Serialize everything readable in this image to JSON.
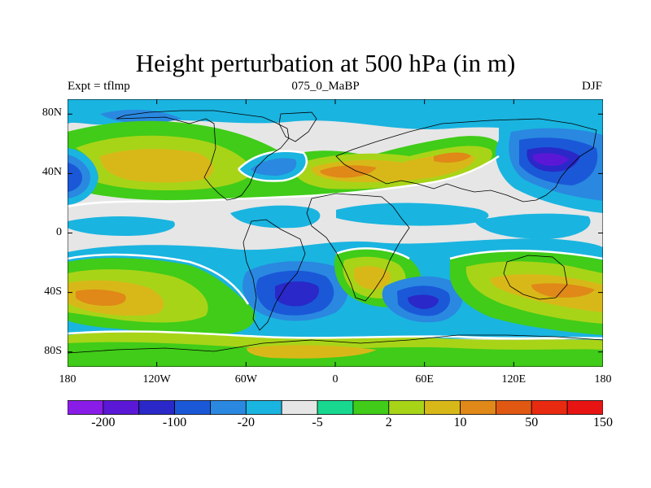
{
  "title": "Height perturbation at 500 hPa (in m)",
  "subtitle_left": "Expt = tflmp",
  "subtitle_center": "075_0_MaBP",
  "subtitle_right": "DJF",
  "map": {
    "projection": "cylindrical-equidistant",
    "lon_range": [
      -180,
      180
    ],
    "lat_range": [
      -90,
      90
    ],
    "lat_ticks": [
      {
        "value": 80,
        "label": "80N"
      },
      {
        "value": 40,
        "label": "40N"
      },
      {
        "value": 0,
        "label": "0"
      },
      {
        "value": -40,
        "label": "40S"
      },
      {
        "value": -80,
        "label": "80S"
      }
    ],
    "lon_ticks": [
      {
        "value": -180,
        "label": "180"
      },
      {
        "value": -120,
        "label": "120W"
      },
      {
        "value": -60,
        "label": "60W"
      },
      {
        "value": 0,
        "label": "0"
      },
      {
        "value": 60,
        "label": "60E"
      },
      {
        "value": 120,
        "label": "120E"
      },
      {
        "value": 180,
        "label": "180"
      }
    ],
    "colorbar": {
      "colors": [
        "#8a1ce8",
        "#5a18d6",
        "#2a28c8",
        "#1a58d8",
        "#2a88e0",
        "#1ab4e0",
        "#e6e6e6",
        "#18d890",
        "#40cc18",
        "#a8d418",
        "#d8b818",
        "#e08818",
        "#e05812",
        "#e82a10",
        "#e81414"
      ],
      "labels": [
        {
          "index": 1,
          "text": "-200"
        },
        {
          "index": 3,
          "text": "-100"
        },
        {
          "index": 5,
          "text": "-20"
        },
        {
          "index": 7,
          "text": "-5"
        },
        {
          "index": 9,
          "text": "2"
        },
        {
          "index": 11,
          "text": "10"
        },
        {
          "index": 13,
          "text": "50"
        },
        {
          "index": 15,
          "text": "150"
        }
      ]
    }
  }
}
